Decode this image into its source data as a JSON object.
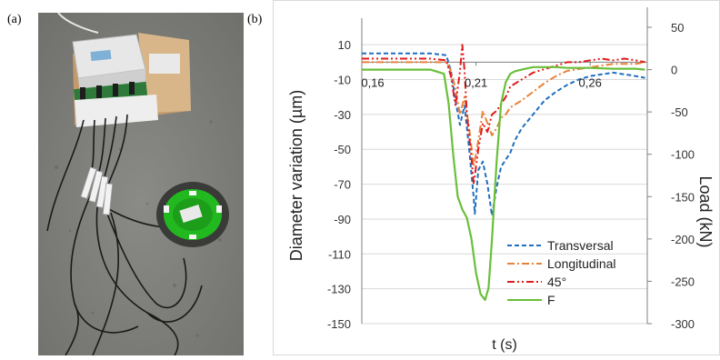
{
  "panels": {
    "a_label": "(a)",
    "b_label": "(b)"
  },
  "chart_data": {
    "type": "line",
    "xlabel": "t (s)",
    "ylabel": "Diameter variation (µm)",
    "y2label": "Load (kN)",
    "xlim": [
      0.16,
      0.285
    ],
    "ylim": [
      -150,
      20
    ],
    "y2lim": [
      -300,
      50
    ],
    "x_ticks": [
      "0,16",
      "0,21",
      "0,26"
    ],
    "x_tick_values": [
      0.16,
      0.21,
      0.26
    ],
    "y_ticks": [
      10,
      -10,
      -30,
      -50,
      -70,
      -90,
      -110,
      -130,
      -150
    ],
    "y2_ticks": [
      50,
      0,
      -50,
      -100,
      -150,
      -200,
      -250,
      -300
    ],
    "legend_position": "bottom-right",
    "series": [
      {
        "name": "Transversal",
        "axis": "left",
        "color": "#1f6fbf",
        "dash": "dashed",
        "x": [
          0.16,
          0.19,
          0.197,
          0.199,
          0.201,
          0.203,
          0.205,
          0.207,
          0.209,
          0.2095,
          0.211,
          0.213,
          0.215,
          0.217,
          0.219,
          0.221,
          0.223,
          0.225,
          0.227,
          0.23,
          0.235,
          0.24,
          0.245,
          0.25,
          0.255,
          0.26,
          0.265,
          0.27,
          0.275,
          0.28,
          0.284
        ],
        "y": [
          5,
          5,
          4,
          -5,
          -22,
          -36,
          -25,
          -50,
          -78,
          -87,
          -62,
          -57,
          -70,
          -88,
          -72,
          -60,
          -56,
          -52,
          -45,
          -38,
          -30,
          -22,
          -17,
          -13,
          -10,
          -8,
          -7,
          -6,
          -7,
          -8,
          -9
        ]
      },
      {
        "name": "Longitudinal",
        "axis": "left",
        "color": "#e8823a",
        "dash": "dashdot",
        "x": [
          0.16,
          0.19,
          0.197,
          0.199,
          0.201,
          0.203,
          0.205,
          0.207,
          0.209,
          0.211,
          0.213,
          0.215,
          0.217,
          0.219,
          0.221,
          0.223,
          0.225,
          0.23,
          0.235,
          0.24,
          0.245,
          0.25,
          0.26,
          0.27,
          0.28,
          0.284
        ],
        "y": [
          0,
          0,
          0,
          -5,
          -15,
          -30,
          -20,
          -38,
          -60,
          -45,
          -28,
          -35,
          -42,
          -38,
          -32,
          -30,
          -26,
          -22,
          -17,
          -12,
          -8,
          -5,
          -3,
          -1,
          -1,
          0
        ]
      },
      {
        "name": "45°",
        "axis": "left",
        "color": "#e01b1b",
        "dash": "dashdotdot",
        "x": [
          0.16,
          0.19,
          0.197,
          0.199,
          0.201,
          0.203,
          0.204,
          0.205,
          0.206,
          0.208,
          0.209,
          0.211,
          0.213,
          0.215,
          0.217,
          0.219,
          0.221,
          0.223,
          0.225,
          0.23,
          0.235,
          0.24,
          0.245,
          0.25,
          0.255,
          0.26,
          0.265,
          0.27,
          0.275,
          0.28,
          0.284
        ],
        "y": [
          2,
          2,
          1,
          -8,
          -25,
          -5,
          10,
          -5,
          -30,
          -55,
          -70,
          -50,
          -35,
          -40,
          -30,
          -28,
          -24,
          -20,
          -14,
          -10,
          -6,
          -4,
          -2,
          0,
          0,
          1,
          2,
          1,
          2,
          1,
          0
        ]
      },
      {
        "name": "F",
        "axis": "right",
        "color": "#6abf3a",
        "dash": "solid",
        "x": [
          0.16,
          0.19,
          0.196,
          0.198,
          0.2,
          0.202,
          0.204,
          0.206,
          0.208,
          0.21,
          0.212,
          0.214,
          0.2155,
          0.217,
          0.219,
          0.221,
          0.223,
          0.225,
          0.227,
          0.23,
          0.235,
          0.24,
          0.245,
          0.25,
          0.26,
          0.27,
          0.28,
          0.284
        ],
        "y": [
          0,
          0,
          -5,
          -40,
          -100,
          -150,
          -165,
          -175,
          -200,
          -240,
          -265,
          -272,
          -258,
          -200,
          -110,
          -40,
          -15,
          -5,
          -2,
          0,
          3,
          3,
          3,
          2,
          2,
          1,
          1,
          0
        ]
      }
    ]
  }
}
